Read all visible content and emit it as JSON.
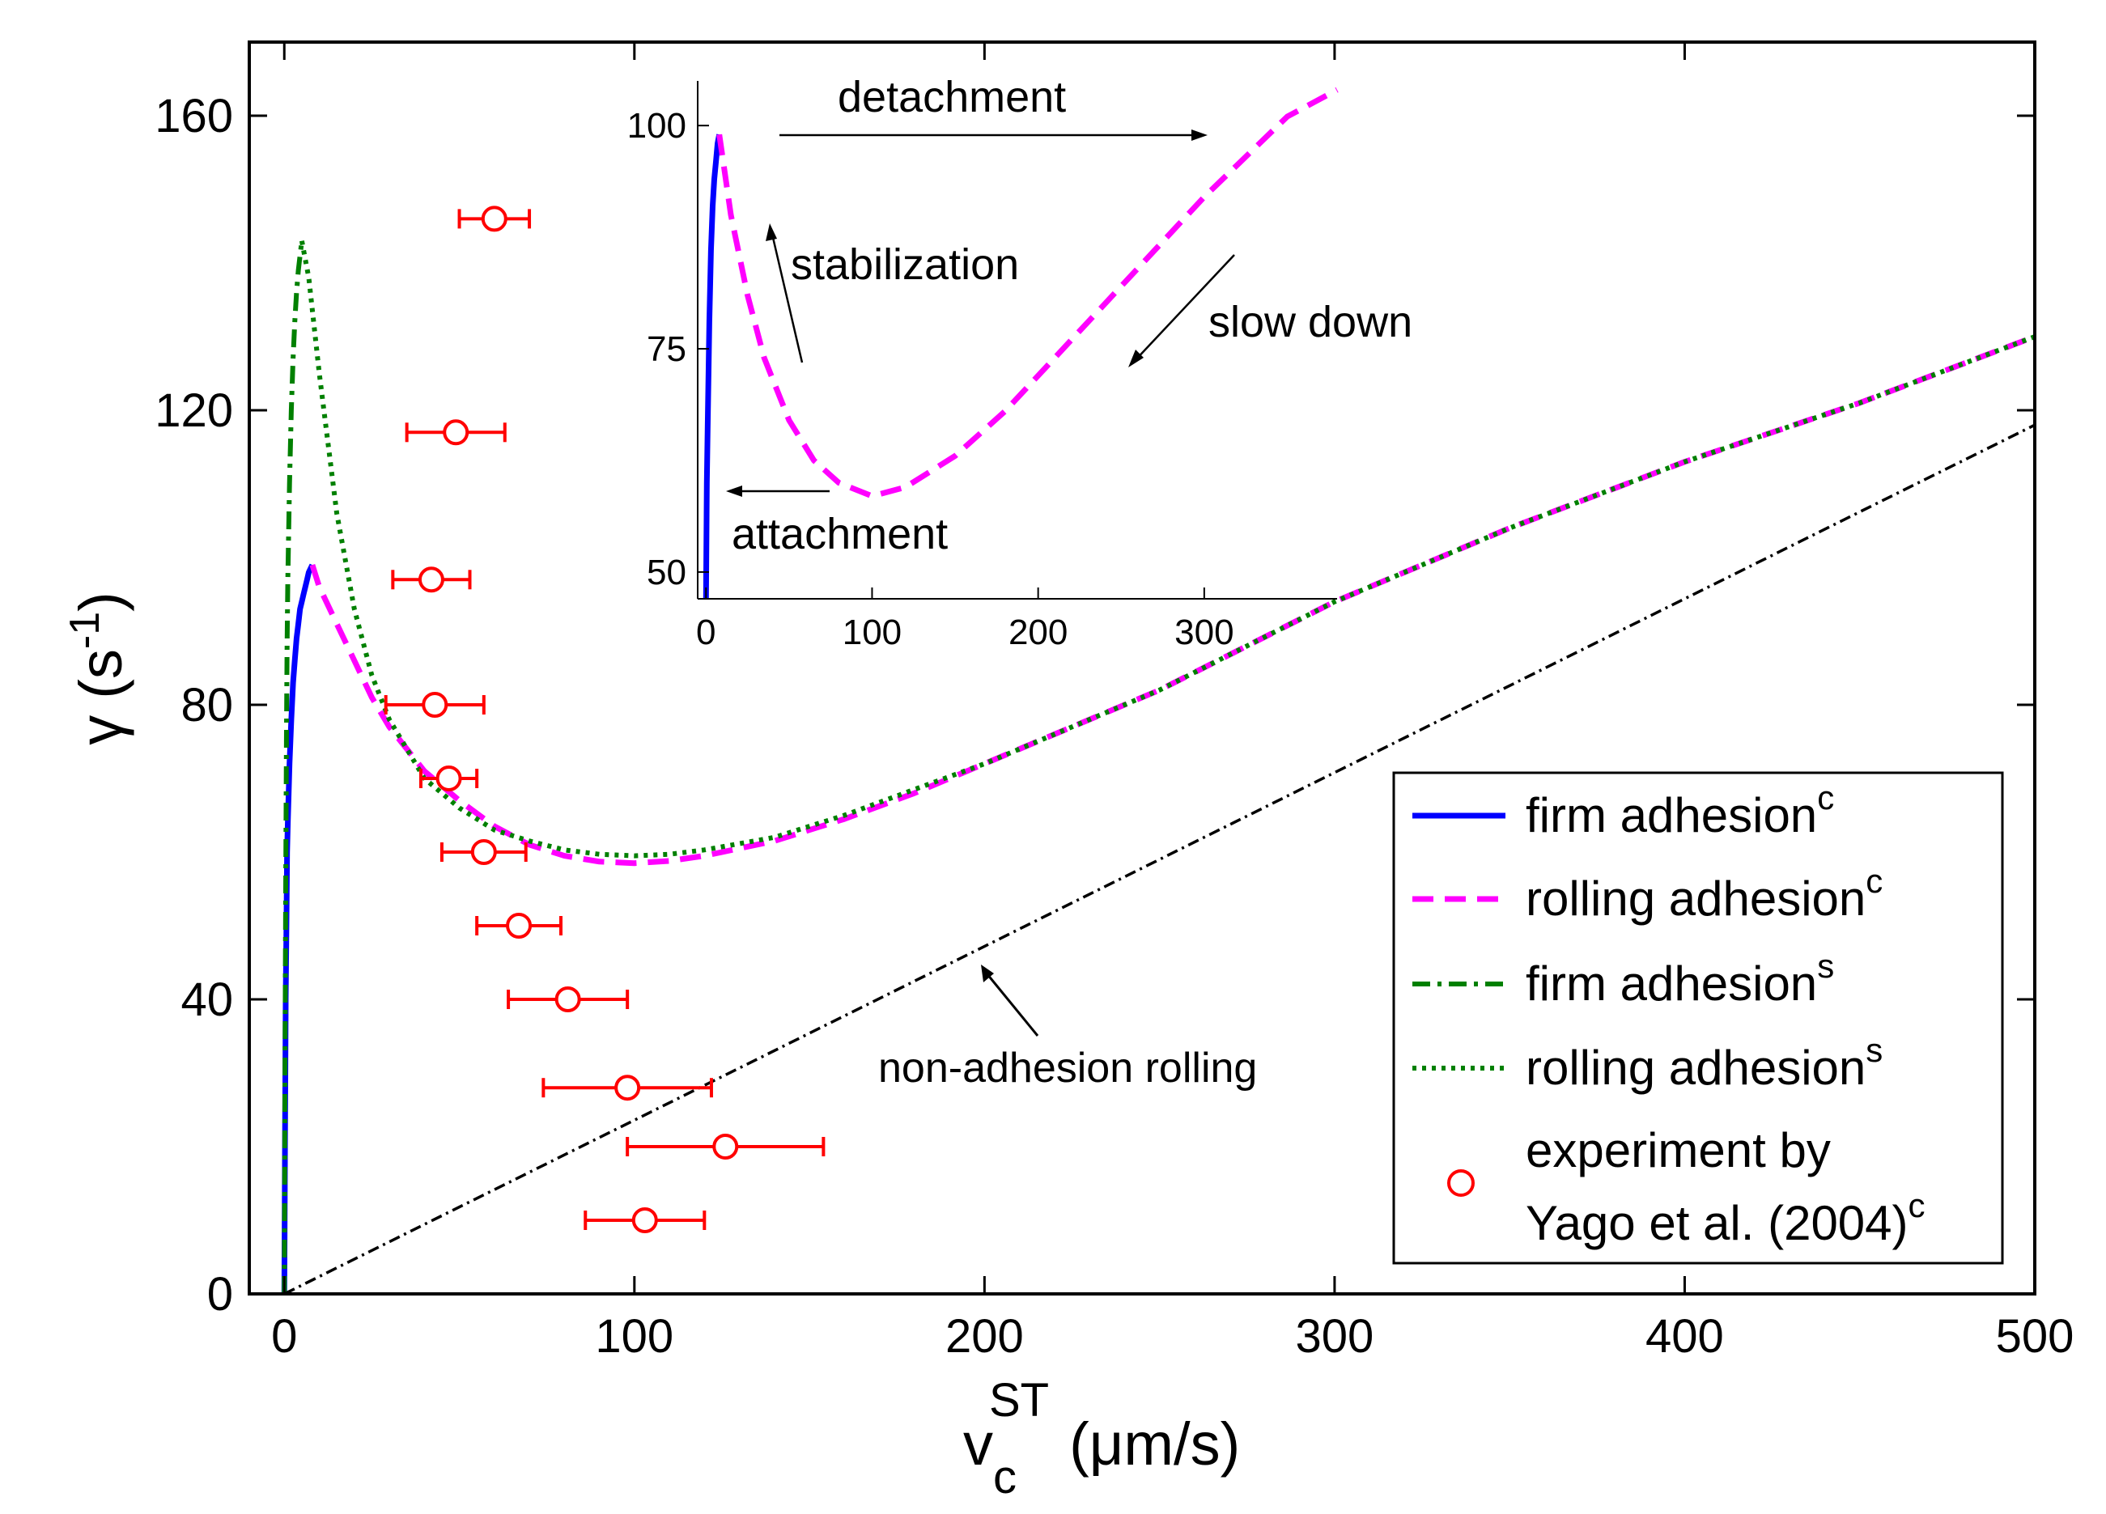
{
  "chart_data": {
    "type": "line",
    "title": "",
    "xlabel": {
      "base": "v",
      "sub": "c",
      "sup": "ST",
      "unit": "(μm/s)"
    },
    "ylabel": {
      "base": "γ",
      "unit_open": "(s",
      "sup": "-1",
      "unit_close": ")"
    },
    "xlim": [
      -10,
      500
    ],
    "ylim": [
      0,
      170
    ],
    "xticks": [
      0,
      100,
      200,
      300,
      400,
      500
    ],
    "yticks": [
      0,
      40,
      80,
      120,
      160
    ],
    "series": [
      {
        "name": "firm adhesion",
        "sup": "c",
        "style": "solid",
        "color": "#0000ff",
        "x": [
          0,
          0.2,
          0.4,
          0.6,
          0.8,
          1,
          1.5,
          2,
          2.5,
          3,
          3.5,
          4,
          4.5,
          5,
          5.5,
          6,
          6.5,
          7,
          7.5,
          8
        ],
        "y": [
          0,
          20,
          40,
          50,
          60,
          64,
          72,
          78,
          83,
          86,
          89,
          91,
          93,
          94,
          95,
          96,
          97,
          98,
          98.5,
          99
        ]
      },
      {
        "name": "rolling adhesion",
        "sup": "c",
        "style": "dashed",
        "color": "#ff00ff",
        "x": [
          8,
          10,
          15,
          20,
          25,
          30,
          40,
          50,
          60,
          70,
          80,
          90,
          100,
          110,
          120,
          140,
          160,
          180,
          200,
          250,
          300,
          350,
          400,
          450,
          500
        ],
        "y": [
          99,
          96,
          91,
          86,
          81,
          77,
          71,
          67,
          63.5,
          61,
          59.5,
          58.7,
          58.5,
          58.8,
          59.5,
          61.5,
          64.5,
          68,
          72,
          82,
          94,
          104,
          113,
          121,
          130
        ]
      },
      {
        "name": "firm adhesion",
        "sup": "s",
        "style": "dashdot",
        "color": "#008000",
        "x": [
          0,
          0.2,
          0.4,
          0.6,
          0.8,
          1,
          1.5,
          2,
          2.5,
          3,
          3.5,
          4,
          4.5,
          5
        ],
        "y": [
          0,
          30,
          55,
          75,
          88,
          97,
          110,
          120,
          127,
          132,
          136,
          139,
          141,
          143
        ]
      },
      {
        "name": "rolling adhesion",
        "sup": "s",
        "style": "dotted",
        "color": "#008000",
        "x": [
          5,
          7,
          10,
          15,
          20,
          25,
          30,
          40,
          50,
          60,
          70,
          80,
          90,
          100,
          110,
          120,
          140,
          160,
          180,
          200,
          250,
          300,
          350,
          400,
          450,
          500
        ],
        "y": [
          143,
          138,
          125,
          106,
          93,
          84,
          78,
          70,
          66,
          63,
          61.5,
          60.3,
          59.7,
          59.5,
          59.7,
          60.3,
          62,
          65,
          68.5,
          72,
          82,
          94,
          104,
          113,
          121,
          130
        ]
      },
      {
        "name": "non-adhesion rolling",
        "style": "dashdot-thin",
        "color": "#000000",
        "x": [
          0,
          500
        ],
        "y": [
          0,
          118
        ]
      }
    ],
    "experiment": {
      "name": "experiment by Yago et al. (2004)",
      "sup": "c",
      "color": "#ff0000",
      "points": [
        {
          "x": 60,
          "y": 146,
          "xerr": 10
        },
        {
          "x": 49,
          "y": 117,
          "xerr": 14
        },
        {
          "x": 42,
          "y": 97,
          "xerr": 11
        },
        {
          "x": 43,
          "y": 80,
          "xerr": 14
        },
        {
          "x": 47,
          "y": 70,
          "xerr": 8
        },
        {
          "x": 57,
          "y": 60,
          "xerr": 12
        },
        {
          "x": 67,
          "y": 50,
          "xerr": 12
        },
        {
          "x": 81,
          "y": 40,
          "xerr": 17
        },
        {
          "x": 98,
          "y": 28,
          "xerr": 24
        },
        {
          "x": 126,
          "y": 20,
          "xerr": 28
        },
        {
          "x": 103,
          "y": 10,
          "xerr": 17
        }
      ]
    },
    "legend": {
      "position": "lower-right",
      "entries": [
        {
          "label": "firm adhesion",
          "sup": "c"
        },
        {
          "label": "rolling adhesion",
          "sup": "c"
        },
        {
          "label": "firm adhesion",
          "sup": "s"
        },
        {
          "label": "rolling adhesion",
          "sup": "s"
        },
        {
          "label_line1": "experiment by",
          "label_line2": "Yago et al. (2004)",
          "sup": "c"
        }
      ]
    },
    "annotations": [
      {
        "text": "non-adhesion rolling",
        "points_to": {
          "x": 200,
          "y": 47
        }
      }
    ],
    "inset": {
      "type": "line",
      "xlim": [
        -5,
        380
      ],
      "ylim": [
        47,
        105
      ],
      "xticks": [
        0,
        100,
        200,
        300
      ],
      "yticks": [
        50,
        75,
        100
      ],
      "series": [
        {
          "name": "firm adhesion",
          "style": "solid",
          "color": "#0000ff",
          "x": [
            0,
            0.5,
            1,
            2,
            3,
            4,
            5,
            6,
            7,
            8
          ],
          "y": [
            47,
            60,
            66,
            78,
            86,
            91,
            94,
            96,
            98,
            99
          ]
        },
        {
          "name": "rolling adhesion",
          "style": "dashed",
          "color": "#ff00ff",
          "x": [
            8,
            15,
            25,
            35,
            50,
            65,
            80,
            100,
            120,
            150,
            180,
            210,
            250,
            300,
            350,
            380
          ],
          "y": [
            99,
            90,
            81,
            74,
            67,
            62.5,
            60,
            58.5,
            59.5,
            63,
            68,
            74,
            82,
            92,
            101,
            104
          ]
        }
      ],
      "annotations": [
        {
          "text": "detachment"
        },
        {
          "text": "stabilization"
        },
        {
          "text": "slow down"
        },
        {
          "text": "attachment"
        }
      ]
    }
  }
}
